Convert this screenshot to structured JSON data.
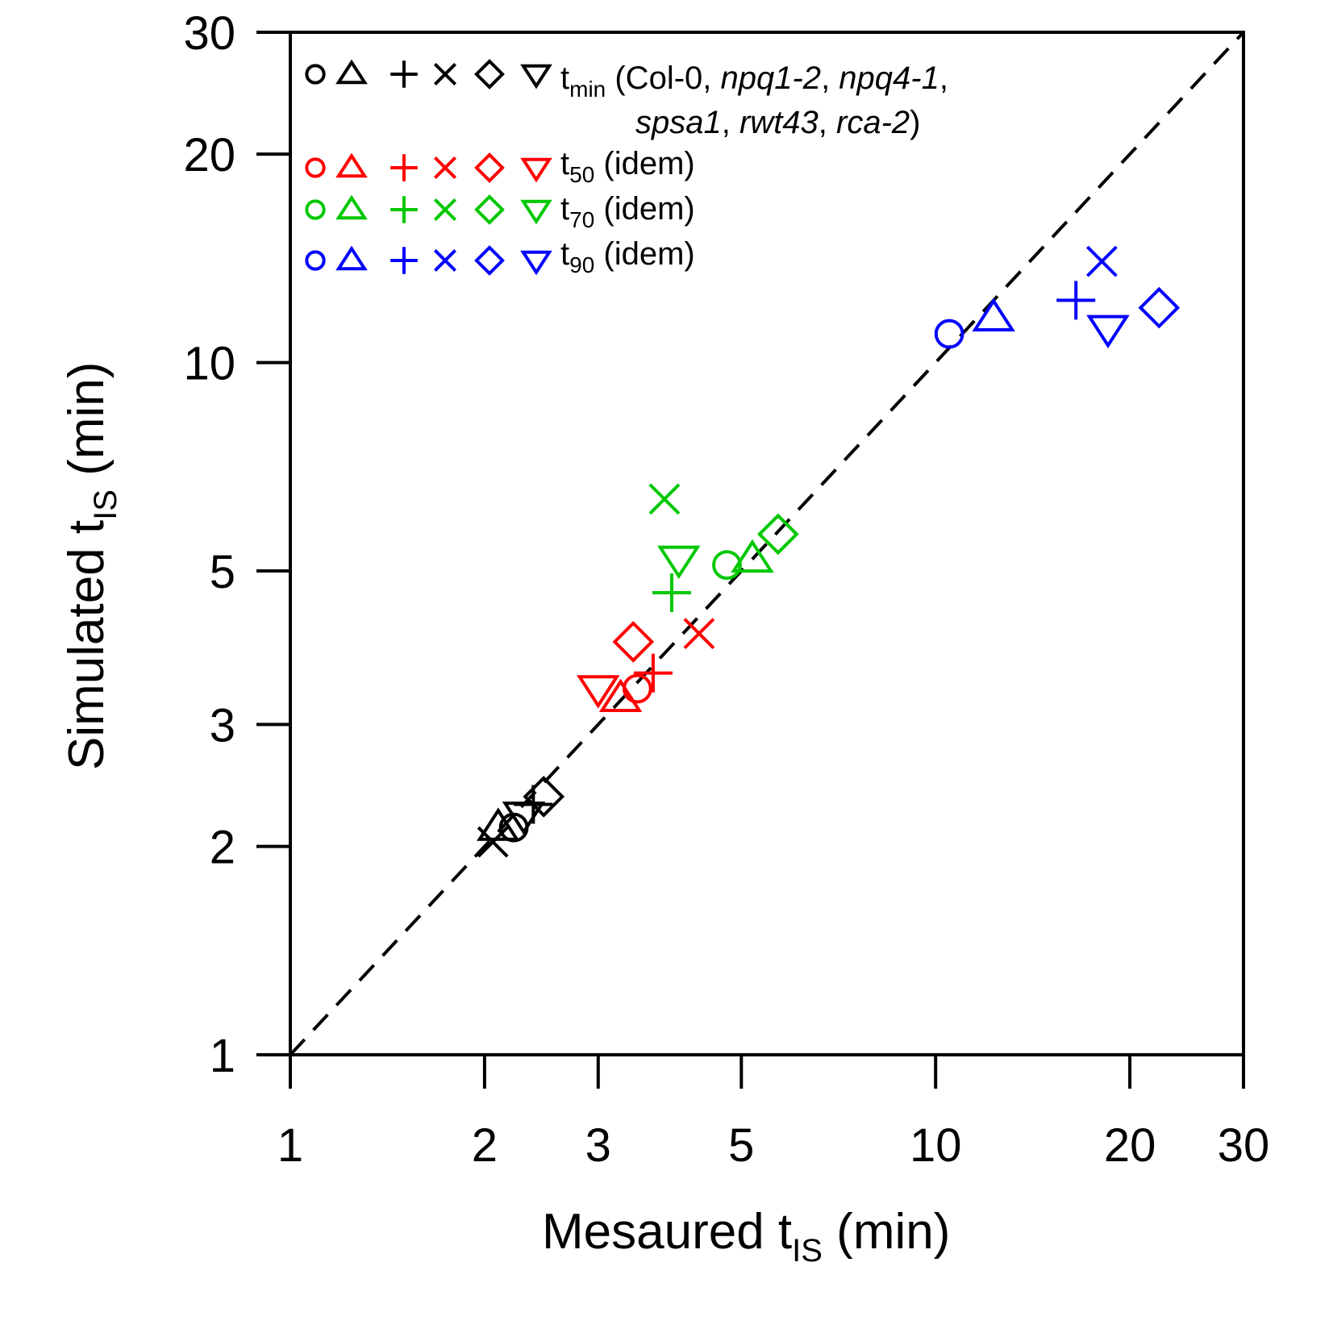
{
  "chart_data": {
    "type": "scatter",
    "x_scale": "log",
    "y_scale": "log",
    "xlim": [
      1,
      30
    ],
    "ylim": [
      1,
      30
    ],
    "x_ticks": [
      1,
      2,
      3,
      5,
      10,
      20,
      30
    ],
    "y_ticks": [
      1,
      2,
      3,
      5,
      10,
      20,
      30
    ],
    "x_tick_labels": [
      "1",
      "2",
      "3",
      "5",
      "10",
      "20",
      "30"
    ],
    "y_tick_labels": [
      "1",
      "2",
      "3",
      "5",
      "10",
      "20",
      "30"
    ],
    "xlabel": {
      "main": "Mesaured t",
      "sub": "IS",
      "unit": " (min)"
    },
    "ylabel": {
      "main": "Simulated t",
      "sub": "IS",
      "unit": " (min)"
    },
    "grid": false,
    "legend_position": "top-left",
    "reference_line": {
      "type": "identity",
      "style": "dashed",
      "color": "#000000"
    },
    "marker_shapes": [
      "circle",
      "triangle-up",
      "plus",
      "cross",
      "diamond",
      "triangle-down"
    ],
    "legend": {
      "tmin": {
        "label_main": "t",
        "label_sub": "min",
        "line1_prefix": " (Col-0, ",
        "line1_g1": "npq1-2",
        "line1_sep1": ", ",
        "line1_g2": "npq4-1",
        "line1_end": ",",
        "line2_g1": "spsa1",
        "line2_sep1": ", ",
        "line2_g2": "rwt43",
        "line2_sep2": ", ",
        "line2_g3": "rca-2",
        "line2_end": ")"
      },
      "t50": {
        "label_main": "t",
        "label_sub": "50",
        "suffix": " (idem)"
      },
      "t70": {
        "label_main": "t",
        "label_sub": "70",
        "suffix": " (idem)"
      },
      "t90": {
        "label_main": "t",
        "label_sub": "90",
        "suffix": " (idem)"
      }
    },
    "series": [
      {
        "key": "tmin",
        "color": "#000000",
        "points": [
          {
            "shape": "circle",
            "x": 2.22,
            "y": 2.13
          },
          {
            "shape": "triangle-up",
            "x": 2.1,
            "y": 2.13
          },
          {
            "shape": "plus",
            "x": 2.38,
            "y": 2.3
          },
          {
            "shape": "cross",
            "x": 2.06,
            "y": 2.03
          },
          {
            "shape": "diamond",
            "x": 2.47,
            "y": 2.36
          },
          {
            "shape": "triangle-down",
            "x": 2.3,
            "y": 2.22
          }
        ]
      },
      {
        "key": "t50",
        "color": "#ff0000",
        "points": [
          {
            "shape": "circle",
            "x": 3.45,
            "y": 3.38
          },
          {
            "shape": "triangle-up",
            "x": 3.25,
            "y": 3.27
          },
          {
            "shape": "plus",
            "x": 3.65,
            "y": 3.56
          },
          {
            "shape": "cross",
            "x": 4.3,
            "y": 4.06
          },
          {
            "shape": "diamond",
            "x": 3.4,
            "y": 3.95
          },
          {
            "shape": "triangle-down",
            "x": 3.0,
            "y": 3.38
          }
        ]
      },
      {
        "key": "t70",
        "color": "#00c800",
        "points": [
          {
            "shape": "circle",
            "x": 4.75,
            "y": 5.1
          },
          {
            "shape": "triangle-up",
            "x": 5.2,
            "y": 5.2
          },
          {
            "shape": "plus",
            "x": 3.9,
            "y": 4.65
          },
          {
            "shape": "cross",
            "x": 3.8,
            "y": 6.35
          },
          {
            "shape": "diamond",
            "x": 5.7,
            "y": 5.65
          },
          {
            "shape": "triangle-down",
            "x": 4.0,
            "y": 5.2
          }
        ]
      },
      {
        "key": "t90",
        "color": "#0000ff",
        "points": [
          {
            "shape": "circle",
            "x": 10.5,
            "y": 11.0
          },
          {
            "shape": "triangle-up",
            "x": 12.3,
            "y": 11.6
          },
          {
            "shape": "plus",
            "x": 16.5,
            "y": 12.3
          },
          {
            "shape": "cross",
            "x": 18.1,
            "y": 14.0
          },
          {
            "shape": "diamond",
            "x": 22.2,
            "y": 12.0
          },
          {
            "shape": "triangle-down",
            "x": 18.5,
            "y": 11.2
          }
        ]
      }
    ]
  }
}
